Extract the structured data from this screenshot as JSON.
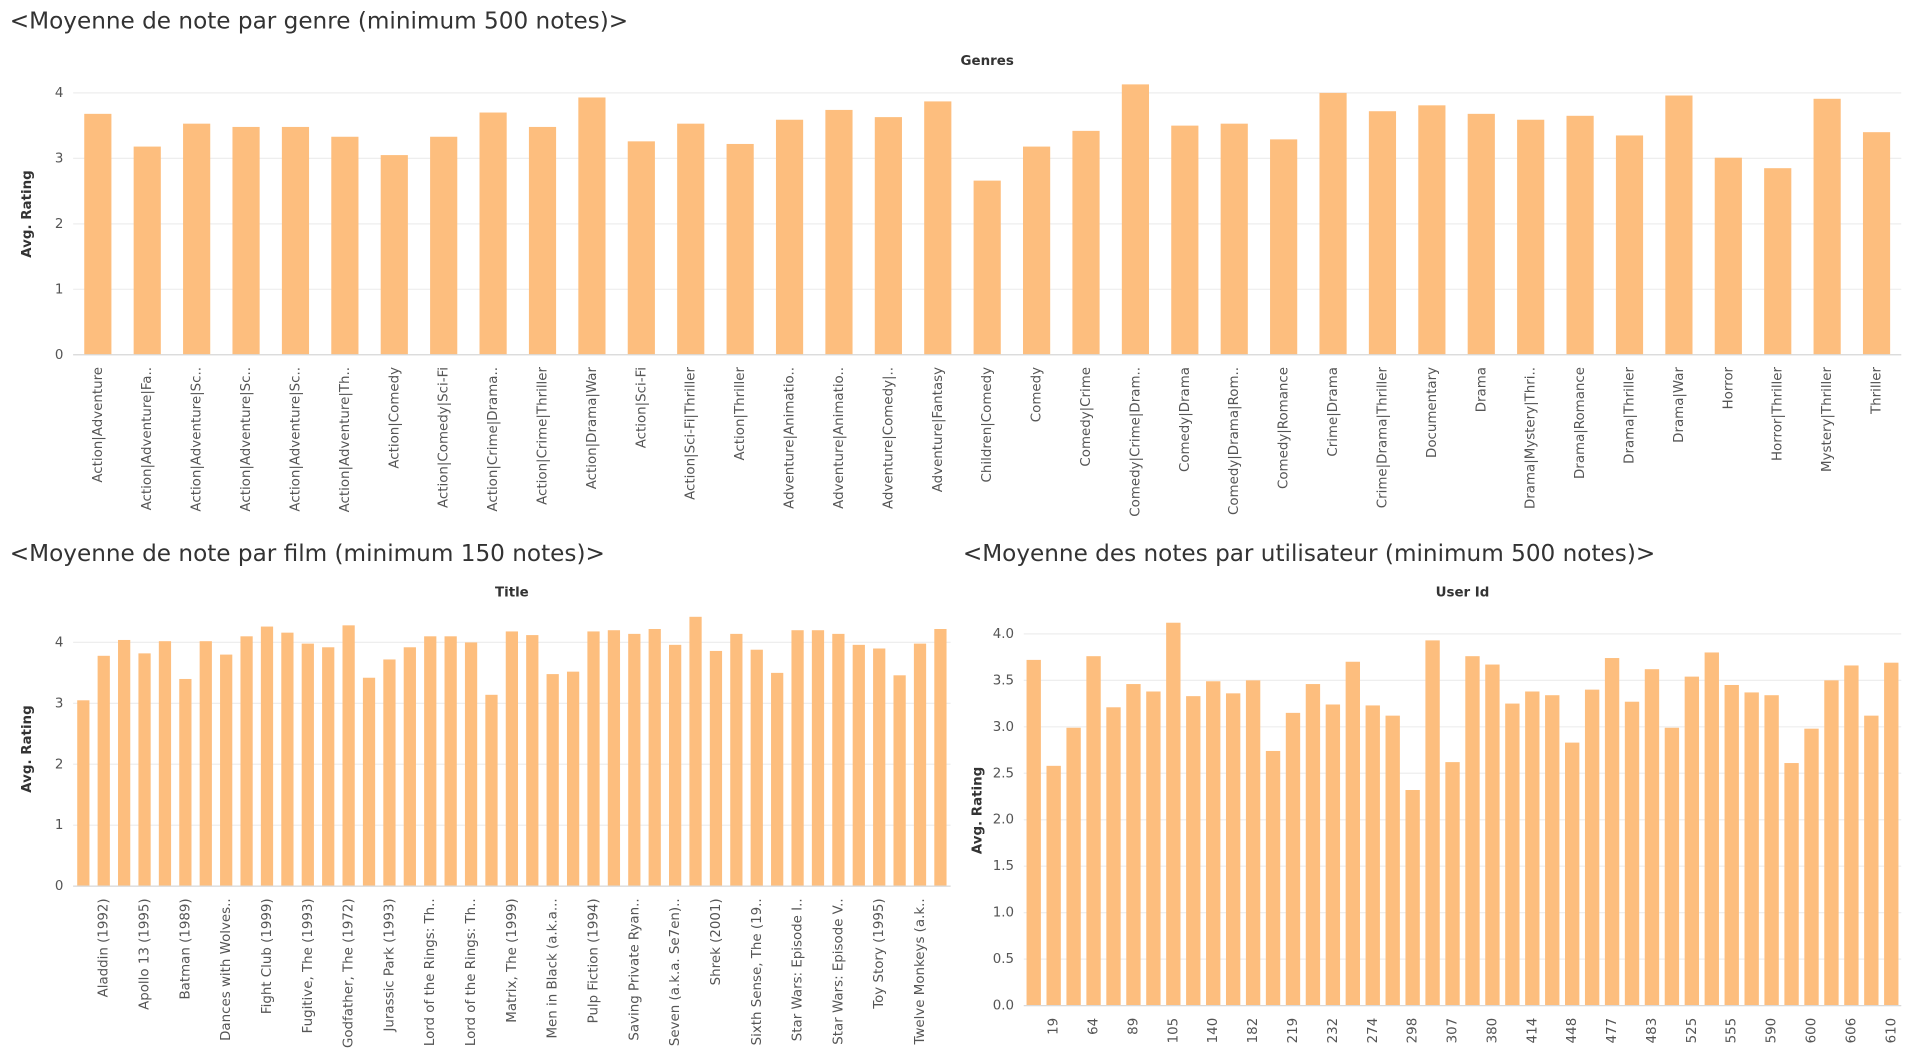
{
  "chart_data": [
    {
      "type": "bar",
      "title": "<Moyenne de note par genre (minimum 500 notes)>",
      "x_label": "Genres",
      "y_label": "Avg. Rating",
      "categories": [
        "Action|Adventure",
        "Action|Adventure|Fa..",
        "Action|Adventure|Sc..",
        "Action|Adventure|Sc..",
        "Action|Adventure|Sc..",
        "Action|Adventure|Th..",
        "Action|Comedy",
        "Action|Comedy|Sci-Fi",
        "Action|Crime|Drama..",
        "Action|Crime|Thriller",
        "Action|Drama|War",
        "Action|Sci-Fi",
        "Action|Sci-Fi|Thriller",
        "Action|Thriller",
        "Adventure|Animatio..",
        "Adventure|Animatio..",
        "Adventure|Comedy|..",
        "Adventure|Fantasy",
        "Children|Comedy",
        "Comedy",
        "Comedy|Crime",
        "Comedy|Crime|Dram..",
        "Comedy|Drama",
        "Comedy|Drama|Rom..",
        "Comedy|Romance",
        "Crime|Drama",
        "Crime|Drama|Thriller",
        "Documentary",
        "Drama",
        "Drama|Mystery|Thri..",
        "Drama|Romance",
        "Drama|Thriller",
        "Drama|War",
        "Horror",
        "Horror|Thriller",
        "Mystery|Thriller",
        "Thriller"
      ],
      "values": [
        3.68,
        3.18,
        3.53,
        3.48,
        3.48,
        3.33,
        3.05,
        3.33,
        3.7,
        3.48,
        3.93,
        3.26,
        3.53,
        3.22,
        3.59,
        3.74,
        3.63,
        3.87,
        2.66,
        3.18,
        3.42,
        4.13,
        3.5,
        3.53,
        3.29,
        4.0,
        3.72,
        3.81,
        3.68,
        3.59,
        3.65,
        3.35,
        3.96,
        3.01,
        2.85,
        3.91,
        3.4
      ],
      "color": "#fdbe7e",
      "ylim": [
        0,
        4.3
      ],
      "yticks": [
        0,
        1,
        2,
        3,
        4
      ],
      "grid": true
    },
    {
      "type": "bar",
      "title": "<Moyenne de note par film (minimum 150 notes)>",
      "x_label": "Title",
      "y_label": "Avg. Rating",
      "categories": [
        null,
        "Aladdin (1992)",
        null,
        "Apollo 13 (1995)",
        null,
        "Batman (1989)",
        null,
        "Dances with Wolves..",
        null,
        "Fight Club (1999)",
        null,
        "Fugitive, The (1993)",
        null,
        "Godfather, The (1972)",
        null,
        "Jurassic Park (1993)",
        null,
        "Lord of the Rings: Th..",
        null,
        "Lord of the Rings: Th..",
        null,
        "Matrix, The (1999)",
        null,
        "Men in Black (a.k.a...",
        null,
        "Pulp Fiction (1994)",
        null,
        "Saving Private Ryan..",
        null,
        "Seven (a.k.a. Se7en)..",
        null,
        "Shrek (2001)",
        null,
        "Sixth Sense, The (19..",
        null,
        "Star Wars: Episode I..",
        null,
        "Star Wars: Episode V..",
        null,
        "Toy Story (1995)",
        null,
        "Twelve Monkeys (a.k..",
        null
      ],
      "values": [
        3.05,
        3.78,
        4.04,
        3.82,
        4.02,
        3.4,
        4.02,
        3.8,
        4.1,
        4.26,
        4.16,
        3.98,
        3.92,
        4.28,
        3.42,
        3.72,
        3.92,
        4.1,
        4.1,
        4.0,
        3.14,
        4.18,
        4.12,
        3.48,
        3.52,
        4.18,
        4.2,
        4.14,
        4.22,
        3.96,
        4.42,
        3.86,
        4.14,
        3.88,
        3.5,
        4.2,
        4.2,
        4.14,
        3.96,
        3.9,
        3.46,
        3.98,
        4.22
      ],
      "color": "#fdbe7e",
      "ylim": [
        0,
        4.5
      ],
      "yticks": [
        0,
        1,
        2,
        3,
        4
      ],
      "grid": true
    },
    {
      "type": "bar",
      "title": "<Moyenne des notes par utilisateur (minimum 500 notes)>",
      "x_label": "User Id",
      "y_label": "Avg. Rating",
      "categories": [
        null,
        "19",
        null,
        "64",
        null,
        "89",
        null,
        "105",
        null,
        "140",
        null,
        "182",
        null,
        "219",
        null,
        "232",
        null,
        "274",
        null,
        "298",
        null,
        "307",
        null,
        "380",
        null,
        "414",
        null,
        "448",
        null,
        "477",
        null,
        "483",
        null,
        "525",
        null,
        "555",
        null,
        "590",
        null,
        "600",
        null,
        "606",
        null,
        "610"
      ],
      "values": [
        3.72,
        2.58,
        2.99,
        3.76,
        3.21,
        3.46,
        3.38,
        4.12,
        3.33,
        3.49,
        3.36,
        3.5,
        2.74,
        3.15,
        3.46,
        3.24,
        3.7,
        3.23,
        3.12,
        2.32,
        3.93,
        2.62,
        3.76,
        3.67,
        3.25,
        3.38,
        3.34,
        2.83,
        3.4,
        3.74,
        3.27,
        3.62,
        2.99,
        3.54,
        3.8,
        3.45,
        3.37,
        3.34,
        2.61,
        2.98,
        3.5,
        3.66,
        3.12,
        3.69
      ],
      "color": "#fdbe7e",
      "ylim": [
        0,
        4.2
      ],
      "yticks": [
        {
          "value": 0,
          "label": "0.0"
        },
        0.5,
        {
          "value": 1,
          "label": "1.0"
        },
        1.5,
        {
          "value": 2,
          "label": "2.0"
        },
        2.5,
        {
          "value": 3,
          "label": "3.0"
        },
        3.5,
        {
          "value": 4,
          "label": "4.0"
        }
      ],
      "grid": true
    }
  ]
}
